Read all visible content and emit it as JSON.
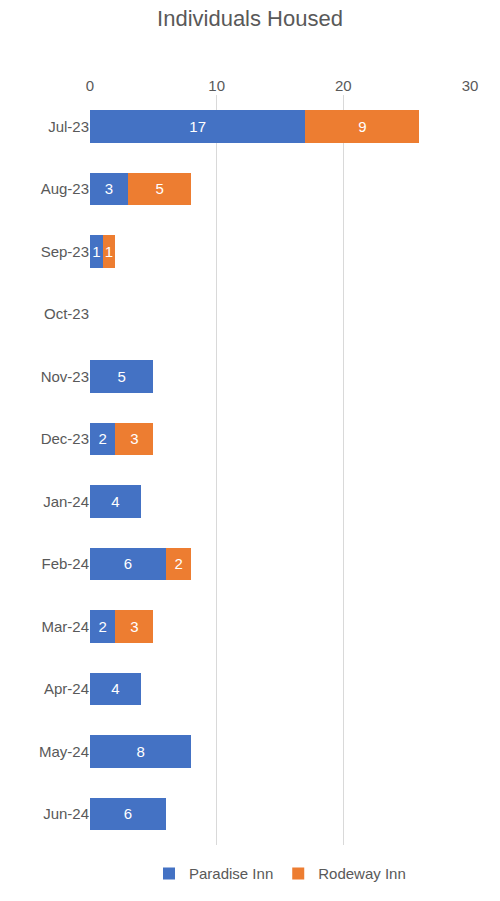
{
  "chart_data": {
    "type": "bar",
    "title": "Individuals Housed",
    "orientation": "horizontal",
    "stacked": true,
    "data_labels": true,
    "grid": true,
    "legend": "bottom",
    "categories": [
      "Jul-23",
      "Aug-23",
      "Sep-23",
      "Oct-23",
      "Nov-23",
      "Dec-23",
      "Jan-24",
      "Feb-24",
      "Mar-24",
      "Apr-24",
      "May-24",
      "Jun-24"
    ],
    "series": [
      {
        "name": "Paradise Inn",
        "color": "#4472c4",
        "values": [
          17,
          3,
          1,
          null,
          5,
          2,
          4,
          6,
          2,
          4,
          8,
          6
        ]
      },
      {
        "name": "Rodeway Inn",
        "color": "#ed7d31",
        "values": [
          9,
          5,
          1,
          null,
          null,
          3,
          null,
          2,
          3,
          null,
          null,
          null
        ]
      }
    ],
    "xlim": [
      0,
      30
    ],
    "xticks": [
      0,
      10,
      20,
      30
    ]
  }
}
